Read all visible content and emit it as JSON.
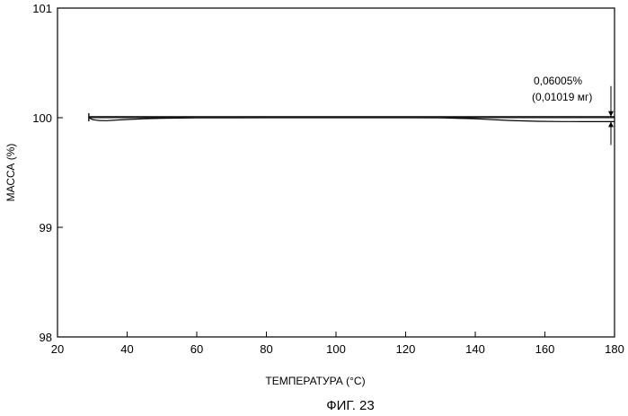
{
  "chart_data": {
    "type": "line",
    "title": "",
    "xlabel": "ТЕМПЕРАТУРА (°C)",
    "ylabel": "МАССА (%)",
    "xlim": [
      20,
      180
    ],
    "ylim": [
      98,
      101
    ],
    "xticks": [
      20,
      40,
      60,
      80,
      100,
      120,
      140,
      160,
      180
    ],
    "yticks": [
      98,
      99,
      100,
      101
    ],
    "grid": false,
    "series": [
      {
        "points": [
          [
            29,
            100.0
          ],
          [
            30,
            99.984
          ],
          [
            31,
            99.978
          ],
          [
            32,
            99.975
          ],
          [
            34,
            99.973
          ],
          [
            36,
            99.976
          ],
          [
            38,
            99.98
          ],
          [
            40,
            99.984
          ],
          [
            45,
            99.99
          ],
          [
            50,
            99.994
          ],
          [
            60,
            99.998
          ],
          [
            80,
            100.0
          ],
          [
            100,
            100.0
          ],
          [
            120,
            100.0
          ],
          [
            130,
            99.999
          ],
          [
            140,
            99.99
          ],
          [
            150,
            99.975
          ],
          [
            158,
            99.967
          ],
          [
            165,
            99.965
          ],
          [
            172,
            99.964
          ],
          [
            180,
            99.964
          ]
        ]
      }
    ],
    "reference_lines": [
      {
        "y": 100.0,
        "x_from": 29,
        "x_to": 180
      },
      {
        "y": 100.01,
        "x_from": 29,
        "x_to": 180
      }
    ],
    "annotation": {
      "percent_text": "0,06005%",
      "mass_text": "(0,01019 мг)"
    }
  },
  "caption": "ФИГ. 23"
}
